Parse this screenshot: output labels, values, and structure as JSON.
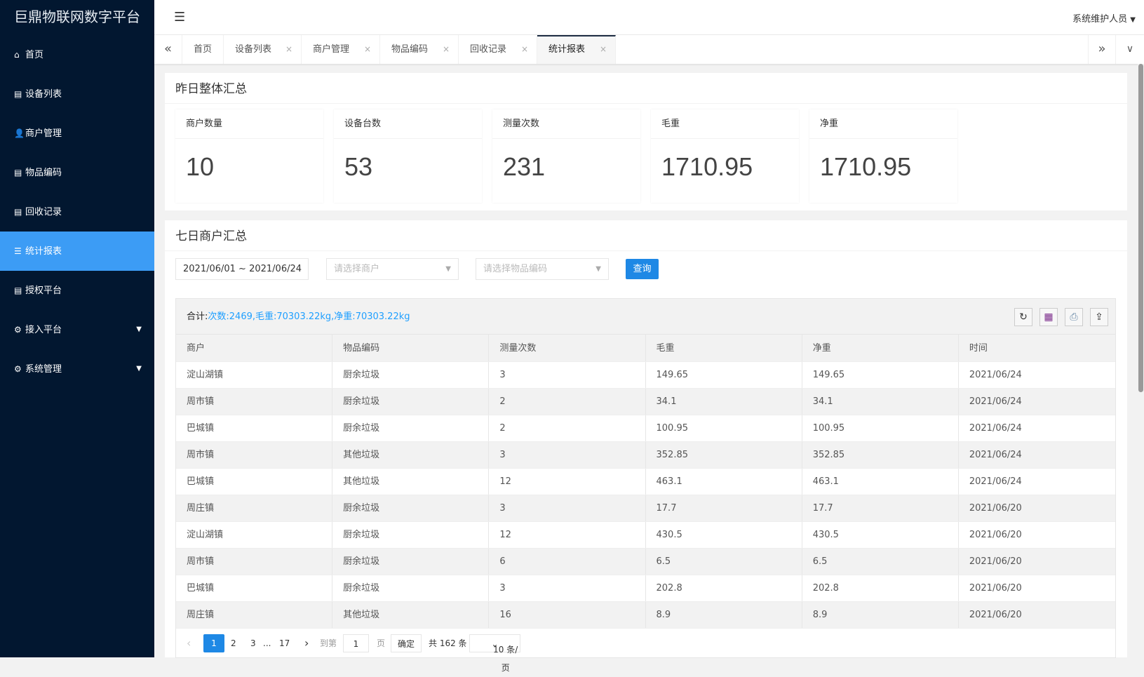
{
  "app": {
    "title": "巨鼎物联网数字平台",
    "user": "系统维护人员"
  },
  "sidebar": {
    "items": [
      {
        "label": "首页",
        "icon": "home-icon"
      },
      {
        "label": "设备列表",
        "icon": "list-icon"
      },
      {
        "label": "商户管理",
        "icon": "user-icon"
      },
      {
        "label": "物品编码",
        "icon": "list-icon"
      },
      {
        "label": "回收记录",
        "icon": "list-icon"
      },
      {
        "label": "统计报表",
        "icon": "menu-icon",
        "active": true
      },
      {
        "label": "授权平台",
        "icon": "list-icon"
      },
      {
        "label": "接入平台",
        "icon": "gear-icon",
        "expandable": true
      },
      {
        "label": "系统管理",
        "icon": "gear-icon",
        "expandable": true
      }
    ]
  },
  "tabs": [
    {
      "label": "首页"
    },
    {
      "label": "设备列表"
    },
    {
      "label": "商户管理"
    },
    {
      "label": "物品编码"
    },
    {
      "label": "回收记录"
    },
    {
      "label": "统计报表",
      "active": true
    }
  ],
  "yesterday": {
    "title": "昨日整体汇总",
    "stats": [
      {
        "label": "商户数量",
        "value": "10"
      },
      {
        "label": "设备台数",
        "value": "53"
      },
      {
        "label": "测量次数",
        "value": "231"
      },
      {
        "label": "毛重",
        "value": "1710.95"
      },
      {
        "label": "净重",
        "value": "1710.95"
      }
    ]
  },
  "weekly": {
    "title": "七日商户汇总",
    "date_range": "2021/06/01 ~ 2021/06/24",
    "merchant_placeholder": "请选择商户",
    "item_placeholder": "请选择物品编码",
    "query_label": "查询",
    "summary_label": "合计:",
    "summary_value": "次数:2469,毛重:70303.22kg,净重:70303.22kg",
    "columns": [
      "商户",
      "物品编码",
      "测量次数",
      "毛重",
      "净重",
      "时间"
    ],
    "rows": [
      [
        "淀山湖镇",
        "厨余垃圾",
        "3",
        "149.65",
        "149.65",
        "2021/06/24"
      ],
      [
        "周市镇",
        "厨余垃圾",
        "2",
        "34.1",
        "34.1",
        "2021/06/24"
      ],
      [
        "巴城镇",
        "厨余垃圾",
        "2",
        "100.95",
        "100.95",
        "2021/06/24"
      ],
      [
        "周市镇",
        "其他垃圾",
        "3",
        "352.85",
        "352.85",
        "2021/06/24"
      ],
      [
        "巴城镇",
        "其他垃圾",
        "12",
        "463.1",
        "463.1",
        "2021/06/24"
      ],
      [
        "周庄镇",
        "厨余垃圾",
        "3",
        "17.7",
        "17.7",
        "2021/06/20"
      ],
      [
        "淀山湖镇",
        "厨余垃圾",
        "12",
        "430.5",
        "430.5",
        "2021/06/20"
      ],
      [
        "周市镇",
        "厨余垃圾",
        "6",
        "6.5",
        "6.5",
        "2021/06/20"
      ],
      [
        "巴城镇",
        "厨余垃圾",
        "3",
        "202.8",
        "202.8",
        "2021/06/20"
      ],
      [
        "周庄镇",
        "其他垃圾",
        "16",
        "8.9",
        "8.9",
        "2021/06/20"
      ]
    ],
    "pager": {
      "pages": [
        "1",
        "2",
        "3",
        "17"
      ],
      "ellipsis": "...",
      "current": "1",
      "goto_label": "到第",
      "goto_value": "1",
      "page_unit": "页",
      "confirm": "确定",
      "total": "共 162 条",
      "page_size": "10 条/页"
    }
  },
  "colors": {
    "sidebar": "#021730",
    "active": "#3c9cf5",
    "primary": "#1e88e5",
    "summary_value": "#1e9fff"
  }
}
